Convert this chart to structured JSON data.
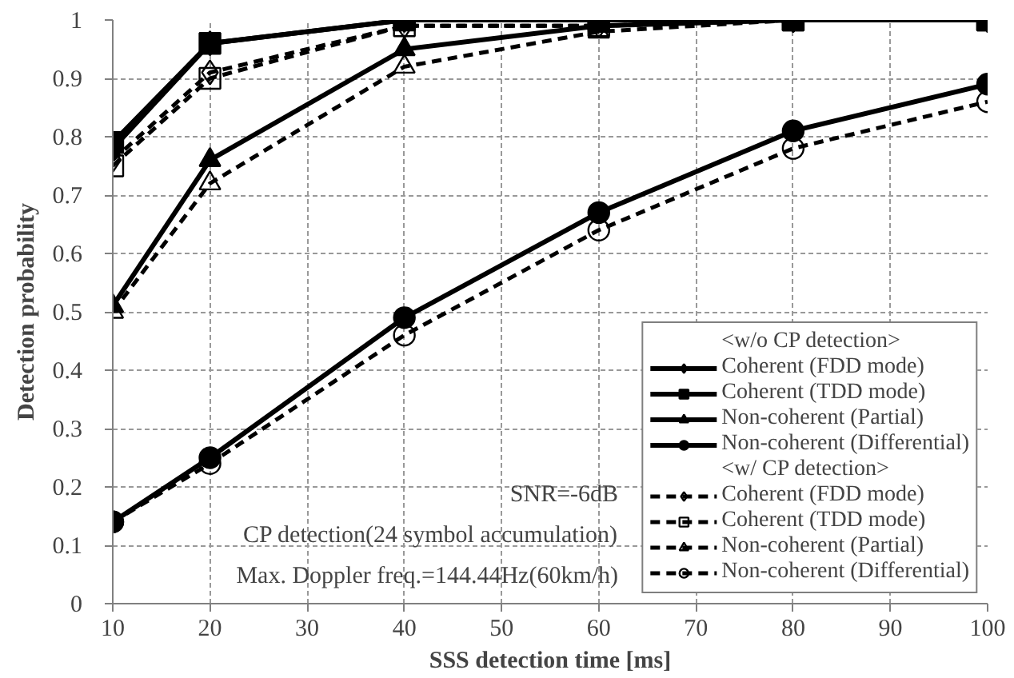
{
  "chart_data": {
    "type": "line",
    "xlabel": "SSS detection time [ms]",
    "ylabel": "Detection probability",
    "x": [
      10,
      20,
      40,
      60,
      80,
      100
    ],
    "xlim": [
      10,
      100
    ],
    "xticks": [
      10,
      20,
      30,
      40,
      50,
      60,
      70,
      80,
      90,
      100
    ],
    "ylim": [
      0,
      1
    ],
    "yticks": [
      0,
      0.1,
      0.2,
      0.3,
      0.4,
      0.5,
      0.6,
      0.7,
      0.8,
      0.9,
      1
    ],
    "grid": true,
    "legend": "bottom right",
    "legend_title": "<w/o CP detection>",
    "annotations": [
      "SNR=-6dB",
      "CP detection(24 symbol accumulation)",
      "Max. Doppler freq.=144.44Hz(60km/h)",
      "<w/ CP detection>"
    ],
    "series": [
      {
        "name": "Coherent (FDD mode)",
        "color": "#000000",
        "marker": "diamond",
        "line_style": "solid",
        "values": [
          0.78,
          0.96,
          1.0,
          1.0,
          1.0,
          1.0
        ]
      },
      {
        "name": "Coherent (TDD mode)",
        "color": "#000000",
        "marker": "square",
        "line_style": "solid",
        "values": [
          0.79,
          0.96,
          1.0,
          1.0,
          1.0,
          1.0
        ]
      },
      {
        "name": "Non-coherent (Partial)",
        "color": "#000000",
        "marker": "triangle",
        "line_style": "solid",
        "values": [
          0.51,
          0.76,
          0.95,
          0.99,
          1.0,
          1.0
        ]
      },
      {
        "name": "Non-coherent (Differential)",
        "color": "#000000",
        "marker": "circle",
        "line_style": "solid",
        "values": [
          0.14,
          0.25,
          0.49,
          0.67,
          0.81,
          0.89
        ]
      },
      {
        "name": "Coherent (FDD mode)",
        "color": "#000000",
        "marker": "diamond",
        "line_style": "dashed",
        "values": [
          0.76,
          0.91,
          0.99,
          0.99,
          1.0,
          1.0
        ]
      },
      {
        "name": "Coherent (TDD mode)",
        "color": "#000000",
        "marker": "square",
        "line_style": "dashed",
        "values": [
          0.75,
          0.9,
          0.99,
          0.99,
          1.0,
          1.0
        ]
      },
      {
        "name": "Non-coherent (Partial)",
        "color": "#000000",
        "marker": "triangle",
        "line_style": "dashed",
        "values": [
          0.5,
          0.72,
          0.92,
          0.98,
          1.0,
          1.0
        ]
      },
      {
        "name": "Non-coherent (Differential)",
        "color": "#000000",
        "marker": "circle",
        "line_style": "dashed",
        "values": [
          0.14,
          0.24,
          0.46,
          0.64,
          0.78,
          0.86
        ]
      }
    ]
  }
}
